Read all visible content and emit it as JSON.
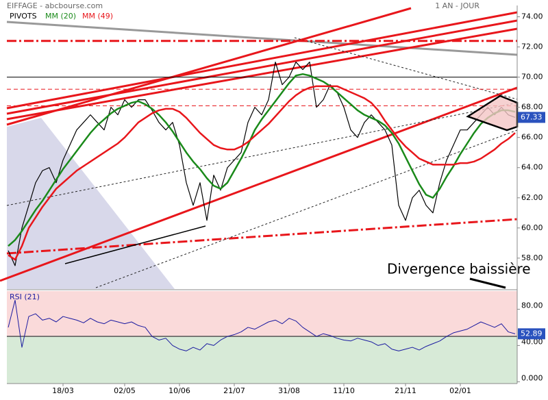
{
  "chart_data": [
    {
      "type": "line",
      "title": "EIFFAGE - abcbourse.com",
      "subtitle": "1 AN - JOUR",
      "legend_pivots": "PIVOTS",
      "annotation": "Divergence baissière",
      "categories": [
        null,
        null,
        null,
        null,
        null,
        null,
        null,
        null,
        "18/03",
        null,
        null,
        null,
        null,
        null,
        null,
        null,
        null,
        "02/05",
        null,
        null,
        null,
        null,
        null,
        null,
        null,
        "10/06",
        null,
        null,
        null,
        null,
        null,
        null,
        null,
        "21/07",
        null,
        null,
        null,
        null,
        null,
        null,
        null,
        "31/08",
        null,
        null,
        null,
        null,
        null,
        null,
        null,
        "11/10",
        null,
        null,
        null,
        null,
        null,
        null,
        null,
        null,
        "21/11",
        null,
        null,
        null,
        null,
        null,
        null,
        null,
        "02/01",
        null,
        null,
        null,
        null,
        null,
        null,
        null,
        null
      ],
      "series": [
        {
          "name": "EIFFAGE",
          "color": "#000000",
          "values": [
            58.5,
            57.5,
            60,
            61.5,
            63,
            63.8,
            64,
            63,
            64.5,
            65.5,
            66.5,
            67,
            67.5,
            67,
            66.5,
            68,
            67.5,
            68.5,
            68,
            68.5,
            68.5,
            67.8,
            67,
            66.5,
            67,
            65.5,
            63,
            61.5,
            63,
            60.5,
            63.5,
            62.5,
            64,
            64.5,
            65,
            67,
            68,
            67.5,
            68.5,
            71,
            69.5,
            70,
            71,
            70.5,
            71,
            68,
            68.5,
            69.5,
            69,
            68,
            66.5,
            66,
            67,
            67.5,
            67,
            66.5,
            65.5,
            61.5,
            60.5,
            62,
            62.5,
            61.5,
            61,
            63,
            64.5,
            65.5,
            66.5,
            66.5,
            67,
            67.5,
            68,
            67.5,
            68,
            67.5,
            67.33
          ]
        },
        {
          "name": "MM (20)",
          "color": "#1a8a1a",
          "values": [
            58.8,
            59.2,
            59.8,
            60.5,
            61.2,
            61.8,
            62.5,
            63.2,
            63.9,
            64.5,
            65.1,
            65.7,
            66.3,
            66.8,
            67.2,
            67.6,
            67.9,
            68.1,
            68.3,
            68.4,
            68.2,
            67.9,
            67.5,
            67,
            66.4,
            65.7,
            65,
            64.4,
            63.9,
            63.3,
            62.8,
            62.6,
            63,
            63.8,
            64.6,
            65.5,
            66.5,
            67.2,
            67.8,
            68.4,
            69,
            69.6,
            70.1,
            70.2,
            70.1,
            69.9,
            69.7,
            69.4,
            69,
            68.6,
            68.2,
            67.8,
            67.5,
            67.3,
            67.1,
            66.8,
            66.3,
            65.6,
            64.7,
            63.8,
            62.9,
            62.2,
            62,
            62.6,
            63.4,
            64.1,
            64.9,
            65.6,
            66.3,
            66.9,
            67.3,
            67.6,
            67.8,
            67.8,
            67.7
          ]
        },
        {
          "name": "MM (49)",
          "color": "#e8161b",
          "values": [
            58.2,
            57.9,
            58.8,
            60,
            60.7,
            61.4,
            62,
            62.6,
            63,
            63.4,
            63.8,
            64.1,
            64.4,
            64.7,
            65,
            65.3,
            65.6,
            66,
            66.5,
            67,
            67.3,
            67.6,
            67.8,
            67.9,
            67.9,
            67.7,
            67.3,
            66.8,
            66.3,
            65.9,
            65.5,
            65.3,
            65.2,
            65.2,
            65.4,
            65.7,
            66.1,
            66.5,
            66.9,
            67.4,
            67.9,
            68.4,
            68.8,
            69.1,
            69.3,
            69.4,
            69.4,
            69.4,
            69.4,
            69.2,
            69,
            68.8,
            68.6,
            68.3,
            67.8,
            67.1,
            66.5,
            65.9,
            65.4,
            65,
            64.6,
            64.4,
            64.2,
            64.2,
            64.2,
            64.2,
            64.3,
            64.3,
            64.4,
            64.6,
            64.9,
            65.2,
            65.6,
            65.9,
            66.3
          ]
        }
      ],
      "pivots": [
        72.4,
        70,
        69.2,
        68.1
      ],
      "ylim": [
        55.95,
        74.75
      ],
      "yticks": [
        {
          "value": 58,
          "label": "58.00"
        },
        {
          "value": 60,
          "label": "60.00"
        },
        {
          "value": 62,
          "label": "62.00"
        },
        {
          "value": 64,
          "label": "64.00"
        },
        {
          "value": 66,
          "label": "66.00"
        },
        {
          "value": 68,
          "label": "68.00"
        },
        {
          "value": 70,
          "label": "70.00"
        },
        {
          "value": 72,
          "label": "72.00"
        },
        {
          "value": 74,
          "label": "74.00"
        }
      ]
    },
    {
      "type": "line",
      "series": [
        {
          "name": "RSI (21)",
          "color": "#1a1aa0",
          "values": [
            60,
            90,
            38,
            72,
            75,
            68,
            70,
            66,
            72,
            70,
            68,
            65,
            70,
            66,
            64,
            68,
            66,
            64,
            66,
            62,
            60,
            50,
            46,
            48,
            40,
            36,
            34,
            38,
            35,
            42,
            40,
            46,
            50,
            52,
            55,
            60,
            58,
            62,
            66,
            68,
            64,
            70,
            67,
            60,
            55,
            50,
            53,
            51,
            48,
            46,
            45,
            48,
            46,
            44,
            40,
            42,
            36,
            34,
            36,
            38,
            35,
            39,
            42,
            45,
            50,
            54,
            56,
            58,
            62,
            66,
            63,
            60,
            64,
            55,
            52.89
          ]
        }
      ],
      "reference_line": 50,
      "ylim": [
        -2,
        100
      ],
      "yticks": [
        {
          "value": 0,
          "label": "0.000"
        },
        {
          "value": 40,
          "label": "40.00"
        },
        {
          "value": 80,
          "label": "80.00"
        }
      ]
    }
  ]
}
